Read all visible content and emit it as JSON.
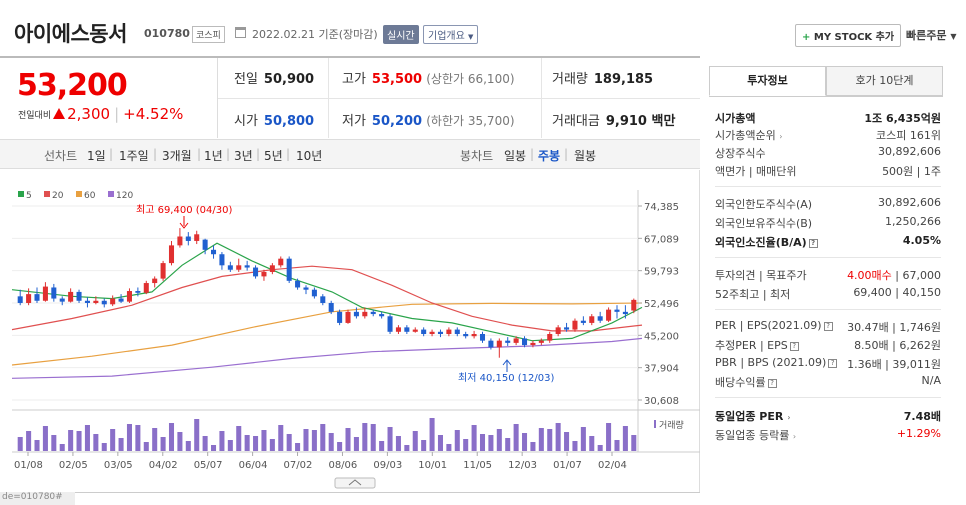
{
  "header": {
    "name": "아이에스동서",
    "code": "010780",
    "market": "코스피",
    "date": "2022.02.21",
    "date_suffix": "기준(장마감)",
    "realtime": "실시간",
    "company_info": "기업개요",
    "my_stock": "MY STOCK 추가",
    "quick_order": "빠른주문"
  },
  "price": {
    "current": "53,200",
    "change_label": "전일대비",
    "change": "2,300",
    "change_pct": "+4.52%"
  },
  "quote": {
    "prev_label": "전일",
    "prev": "50,900",
    "high_label": "고가",
    "high": "53,500",
    "upper_limit": "(상한가 66,100)",
    "volume_label": "거래량",
    "volume": "189,185",
    "open_label": "시가",
    "open": "50,800",
    "low_label": "저가",
    "low": "50,200",
    "lower_limit": "(하한가 35,700)",
    "amount_label": "거래대금",
    "amount": "9,910 백만"
  },
  "period": {
    "line_label": "선차트",
    "items": [
      "1일",
      "1주일",
      "3개월",
      "1년",
      "3년",
      "5년",
      "10년"
    ],
    "candle_label": "봉차트",
    "candle_items": [
      "일봉",
      "주봉",
      "월봉"
    ],
    "active_candle": "주봉"
  },
  "chart_data": {
    "type": "candlestick",
    "y_ticks": [
      "74,385",
      "67,089",
      "59,793",
      "52,496",
      "45,200",
      "37,904",
      "30,608"
    ],
    "ylim": [
      30608,
      74385
    ],
    "x_ticks": [
      "01/08",
      "02/05",
      "03/05",
      "04/02",
      "05/07",
      "06/04",
      "07/02",
      "08/06",
      "09/03",
      "10/01",
      "11/05",
      "12/03",
      "01/07",
      "02/04"
    ],
    "legend": [
      {
        "name": "5",
        "color": "#2aa44b"
      },
      {
        "name": "20",
        "color": "#e05050"
      },
      {
        "name": "60",
        "color": "#e8a040"
      },
      {
        "name": "120",
        "color": "#9a6fd0"
      }
    ],
    "annotations": {
      "high": "최고 69,400 (04/30)",
      "low": "최저 40,150 (12/03)"
    },
    "volume_label": "거래량",
    "candles": [
      [
        54000,
        52500,
        55500,
        52000
      ],
      [
        52500,
        54500,
        55800,
        52000
      ],
      [
        54500,
        53000,
        56000,
        52500
      ],
      [
        53000,
        56200,
        57200,
        52800
      ],
      [
        56000,
        53500,
        56800,
        52800
      ],
      [
        53500,
        52800,
        54000,
        52000
      ],
      [
        52800,
        55000,
        55800,
        52600
      ],
      [
        55000,
        53000,
        55500,
        52500
      ],
      [
        53000,
        52500,
        53800,
        51500
      ],
      [
        52500,
        53000,
        54000,
        52200
      ],
      [
        53000,
        52200,
        53500,
        51500
      ],
      [
        52200,
        53500,
        54200,
        51800
      ],
      [
        53500,
        52800,
        54500,
        52500
      ],
      [
        52800,
        55200,
        55800,
        52500
      ],
      [
        55200,
        54800,
        56000,
        54000
      ],
      [
        54800,
        57000,
        57500,
        54500
      ],
      [
        57000,
        58000,
        58500,
        56000
      ],
      [
        58000,
        61500,
        62000,
        57500
      ],
      [
        61500,
        65500,
        66500,
        61000
      ],
      [
        65500,
        67500,
        69400,
        65000
      ],
      [
        67500,
        66500,
        68500,
        65500
      ],
      [
        66500,
        68000,
        68800,
        65800
      ],
      [
        66800,
        64500,
        67000,
        63500
      ],
      [
        64500,
        63500,
        65500,
        62500
      ],
      [
        63500,
        61000,
        64000,
        60000
      ],
      [
        61000,
        60000,
        61800,
        59500
      ],
      [
        60000,
        61000,
        62500,
        59500
      ],
      [
        61000,
        60500,
        62000,
        59800
      ],
      [
        60500,
        58500,
        61000,
        58000
      ],
      [
        58500,
        59500,
        60000,
        57500
      ],
      [
        59500,
        61000,
        61500,
        59000
      ],
      [
        61000,
        62500,
        63000,
        60500
      ],
      [
        62500,
        57500,
        63000,
        57000
      ],
      [
        57500,
        56000,
        58000,
        55500
      ],
      [
        56000,
        55500,
        56500,
        54500
      ],
      [
        55500,
        54000,
        56000,
        53500
      ],
      [
        54000,
        52500,
        54500,
        52000
      ],
      [
        52500,
        50500,
        53000,
        50000
      ],
      [
        50500,
        48000,
        51000,
        47500
      ],
      [
        48000,
        50500,
        51000,
        47800
      ],
      [
        50500,
        49500,
        51500,
        49000
      ],
      [
        49500,
        50500,
        51500,
        49000
      ],
      [
        50500,
        50000,
        51000,
        49500
      ],
      [
        50000,
        49500,
        50500,
        49000
      ],
      [
        49500,
        46000,
        50000,
        45500
      ],
      [
        46000,
        47000,
        47500,
        45500
      ],
      [
        47000,
        46000,
        47500,
        45500
      ],
      [
        46000,
        46500,
        47000,
        45800
      ],
      [
        46500,
        45500,
        47000,
        45000
      ],
      [
        45500,
        46000,
        46500,
        45000
      ],
      [
        46000,
        45500,
        46500,
        44800
      ],
      [
        45500,
        46500,
        47000,
        45000
      ],
      [
        46500,
        45500,
        47000,
        45000
      ],
      [
        45500,
        45000,
        46000,
        44500
      ],
      [
        45000,
        45500,
        46200,
        44500
      ],
      [
        45500,
        44000,
        46000,
        43500
      ],
      [
        44000,
        42500,
        44500,
        42000
      ],
      [
        42500,
        44000,
        44500,
        40150
      ],
      [
        44000,
        43500,
        44800,
        42800
      ],
      [
        43500,
        44500,
        45000,
        43000
      ],
      [
        44500,
        43000,
        45000,
        42500
      ],
      [
        43000,
        43500,
        44000,
        42500
      ],
      [
        43500,
        44000,
        44500,
        43000
      ],
      [
        44000,
        45500,
        46000,
        43500
      ],
      [
        45500,
        47000,
        47500,
        45000
      ],
      [
        47000,
        46500,
        48000,
        46000
      ],
      [
        46500,
        48500,
        49000,
        46000
      ],
      [
        48500,
        48000,
        49500,
        47500
      ],
      [
        48000,
        49500,
        50000,
        47500
      ],
      [
        49500,
        48500,
        50500,
        48000
      ],
      [
        48500,
        51000,
        51500,
        48200
      ],
      [
        51000,
        50500,
        52000,
        49000
      ],
      [
        50500,
        50000,
        52000,
        49000
      ],
      [
        50800,
        53200,
        53500,
        50200
      ]
    ],
    "ma5": [
      [
        0,
        55500
      ],
      [
        60,
        54000
      ],
      [
        100,
        53500
      ],
      [
        140,
        55000
      ],
      [
        170,
        61000
      ],
      [
        205,
        66000
      ],
      [
        240,
        62000
      ],
      [
        280,
        58000
      ],
      [
        320,
        55000
      ],
      [
        350,
        51500
      ],
      [
        400,
        49000
      ],
      [
        440,
        48000
      ],
      [
        480,
        46000
      ],
      [
        520,
        44000
      ],
      [
        560,
        44500
      ],
      [
        600,
        48000
      ],
      [
        630,
        51500
      ]
    ],
    "ma20": [
      [
        0,
        46500
      ],
      [
        60,
        49000
      ],
      [
        120,
        52000
      ],
      [
        170,
        56000
      ],
      [
        210,
        58500
      ],
      [
        260,
        60000
      ],
      [
        300,
        60800
      ],
      [
        340,
        60000
      ],
      [
        380,
        56500
      ],
      [
        420,
        52500
      ],
      [
        460,
        49500
      ],
      [
        500,
        47500
      ],
      [
        540,
        46200
      ],
      [
        580,
        46200
      ],
      [
        610,
        47000
      ],
      [
        630,
        47500
      ]
    ],
    "ma60": [
      [
        0,
        38500
      ],
      [
        80,
        40500
      ],
      [
        160,
        43000
      ],
      [
        240,
        47000
      ],
      [
        320,
        50500
      ],
      [
        400,
        52200
      ],
      [
        480,
        52400
      ],
      [
        560,
        52300
      ],
      [
        630,
        52500
      ]
    ],
    "ma120": [
      [
        0,
        35500
      ],
      [
        100,
        36000
      ],
      [
        200,
        38000
      ],
      [
        280,
        40000
      ],
      [
        360,
        41500
      ],
      [
        440,
        42200
      ],
      [
        520,
        42800
      ],
      [
        600,
        43800
      ],
      [
        630,
        44500
      ]
    ]
  },
  "info": {
    "tab_active": "투자정보",
    "tab_other": "호가 10단계",
    "rows_1": [
      {
        "k": "시가총액",
        "v": "1조 6,435억원"
      },
      {
        "k": "시가총액순위",
        "v": "코스피 161위"
      },
      {
        "k": "상장주식수",
        "v": "30,892,606"
      },
      {
        "k": "액면가 | 매매단위",
        "v": "500원 | 1주"
      }
    ],
    "rows_2": [
      {
        "k": "외국인한도주식수(A)",
        "v": "30,892,606"
      },
      {
        "k": "외국인보유주식수(B)",
        "v": "1,250,266"
      },
      {
        "k": "외국인소진율(B/A)",
        "v": "4.05%"
      }
    ],
    "rows_3": [
      {
        "k": "투자의견 | 목표주가",
        "v1": "4.00매수",
        "v2": " | 67,000"
      },
      {
        "k": "52주최고 | 최저",
        "v": "69,400 | 40,150"
      }
    ],
    "rows_4": [
      {
        "k": "PER | EPS(2021.09)",
        "v": "30.47배 | 1,746원"
      },
      {
        "k": "추정PER | EPS",
        "v": "8.50배 | 6,262원"
      },
      {
        "k": "PBR | BPS (2021.09)",
        "v": "1.36배 | 39,011원"
      },
      {
        "k": "배당수익률",
        "v": "N/A"
      }
    ],
    "rows_5": [
      {
        "k": "동일업종 PER",
        "v": "7.48배"
      },
      {
        "k": "동일업종 등락률",
        "v": "+1.29%"
      }
    ]
  },
  "footer": {
    "fragment": "de=010780#"
  }
}
